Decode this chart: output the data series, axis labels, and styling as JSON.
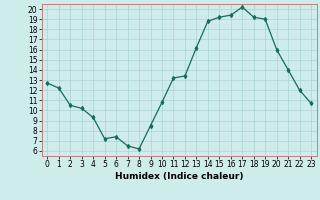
{
  "x": [
    0,
    1,
    2,
    3,
    4,
    5,
    6,
    7,
    8,
    9,
    10,
    11,
    12,
    13,
    14,
    15,
    16,
    17,
    18,
    19,
    20,
    21,
    22,
    23
  ],
  "y": [
    12.7,
    12.2,
    10.5,
    10.2,
    9.3,
    7.2,
    7.4,
    6.5,
    6.2,
    8.5,
    10.8,
    13.2,
    13.4,
    16.2,
    18.8,
    19.2,
    19.4,
    20.2,
    19.2,
    19.0,
    16.0,
    14.0,
    12.0,
    10.7
  ],
  "xlabel": "Humidex (Indice chaleur)",
  "ylim": [
    5.5,
    20.5
  ],
  "xlim": [
    -0.5,
    23.5
  ],
  "yticks": [
    6,
    7,
    8,
    9,
    10,
    11,
    12,
    13,
    14,
    15,
    16,
    17,
    18,
    19,
    20
  ],
  "xticks": [
    0,
    1,
    2,
    3,
    4,
    5,
    6,
    7,
    8,
    9,
    10,
    11,
    12,
    13,
    14,
    15,
    16,
    17,
    18,
    19,
    20,
    21,
    22,
    23
  ],
  "line_color": "#1a6b5a",
  "marker": "d",
  "marker_size": 2.0,
  "bg_color": "#ceecea",
  "grid_color": "#aad4d1",
  "axis_label_fontsize": 6.5,
  "tick_fontsize": 5.5
}
